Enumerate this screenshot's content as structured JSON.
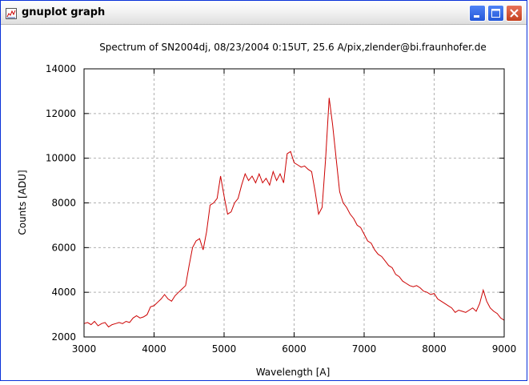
{
  "window": {
    "title": "gnuplot graph",
    "icon": "gnuplot-icon",
    "controls": [
      "minimize-icon",
      "maximize-icon",
      "close-icon"
    ],
    "close_color": "#d8532f",
    "frame_color": "#0831d9"
  },
  "chart_data": {
    "type": "line",
    "title": "Spectrum of SN2004dj, 08/23/2004 0:15UT, 25.6 A/pix,zlender@bi.fraunhofer.de",
    "xlabel": "Wavelength [A]",
    "ylabel": "Counts [ADU]",
    "xlim": [
      3000,
      9000
    ],
    "ylim": [
      2000,
      14000
    ],
    "xticks": [
      3000,
      4000,
      5000,
      6000,
      7000,
      8000,
      9000
    ],
    "yticks": [
      2000,
      4000,
      6000,
      8000,
      10000,
      12000,
      14000
    ],
    "grid": true,
    "line_color": "#cc0000",
    "series": [
      {
        "x": [
          3000,
          3050,
          3100,
          3150,
          3200,
          3250,
          3300,
          3350,
          3400,
          3450,
          3500,
          3550,
          3600,
          3650,
          3700,
          3750,
          3800,
          3850,
          3900,
          3950,
          4000,
          4050,
          4100,
          4150,
          4200,
          4250,
          4300,
          4350,
          4400,
          4450,
          4500,
          4550,
          4600,
          4650,
          4700,
          4750,
          4800,
          4850,
          4900,
          4950,
          5000,
          5050,
          5100,
          5150,
          5200,
          5250,
          5300,
          5350,
          5400,
          5450,
          5500,
          5550,
          5600,
          5650,
          5700,
          5750,
          5800,
          5850,
          5900,
          5950,
          6000,
          6050,
          6100,
          6150,
          6200,
          6250,
          6300,
          6350,
          6400,
          6450,
          6500,
          6550,
          6600,
          6650,
          6700,
          6750,
          6800,
          6850,
          6900,
          6950,
          7000,
          7050,
          7100,
          7150,
          7200,
          7250,
          7300,
          7350,
          7400,
          7450,
          7500,
          7550,
          7600,
          7650,
          7700,
          7750,
          7800,
          7850,
          7900,
          7950,
          8000,
          8050,
          8100,
          8150,
          8200,
          8250,
          8300,
          8350,
          8400,
          8450,
          8500,
          8550,
          8600,
          8650,
          8700,
          8750,
          8800,
          8850,
          8900,
          8950,
          9000
        ],
        "y": [
          2600,
          2650,
          2550,
          2700,
          2500,
          2600,
          2650,
          2450,
          2550,
          2600,
          2650,
          2600,
          2700,
          2650,
          2850,
          2950,
          2850,
          2900,
          3000,
          3350,
          3400,
          3550,
          3700,
          3900,
          3700,
          3600,
          3850,
          4000,
          4150,
          4300,
          5200,
          6000,
          6300,
          6400,
          5900,
          6700,
          7900,
          8000,
          8200,
          9200,
          8300,
          7500,
          7600,
          8000,
          8200,
          8800,
          9300,
          9000,
          9200,
          8900,
          9300,
          8900,
          9100,
          8800,
          9400,
          9000,
          9300,
          8900,
          10200,
          10300,
          9800,
          9700,
          9600,
          9650,
          9500,
          9400,
          8500,
          7500,
          7800,
          10000,
          12700,
          11500,
          10000,
          8500,
          8000,
          7800,
          7500,
          7300,
          7000,
          6900,
          6600,
          6300,
          6200,
          5900,
          5700,
          5600,
          5400,
          5200,
          5100,
          4800,
          4700,
          4500,
          4400,
          4300,
          4250,
          4300,
          4200,
          4050,
          4000,
          3900,
          3950,
          3700,
          3600,
          3500,
          3400,
          3300,
          3100,
          3200,
          3150,
          3100,
          3200,
          3300,
          3150,
          3500,
          4100,
          3600,
          3300,
          3150,
          3050,
          2850,
          2750
        ]
      }
    ]
  }
}
